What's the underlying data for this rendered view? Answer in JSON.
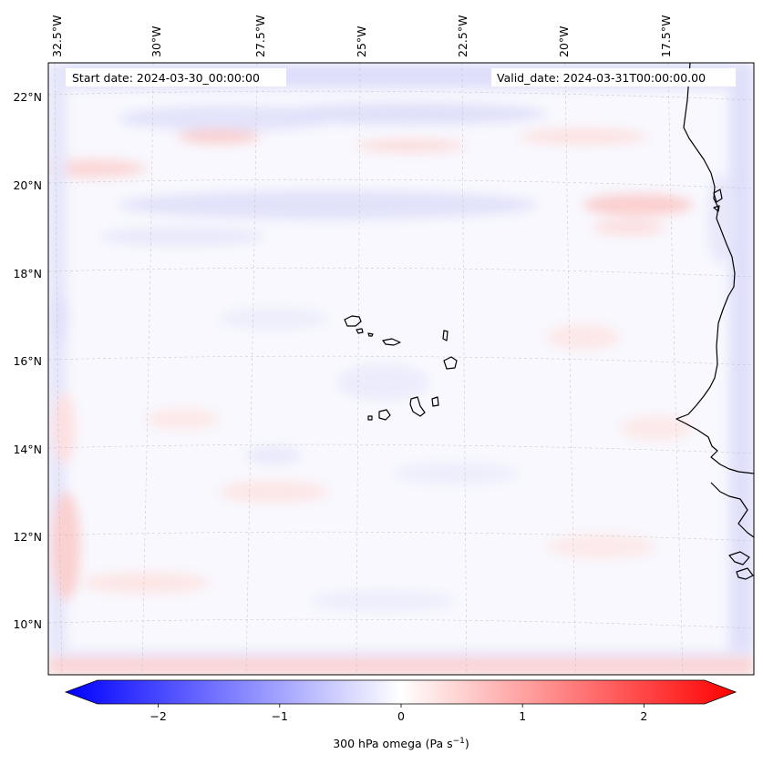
{
  "map": {
    "start_label": "Start date: 2024-03-30_00:00:00",
    "valid_label": "Valid_date: 2024-03-31T00:00:00.00",
    "lon_labels": [
      "32.5°W",
      "30°W",
      "27.5°W",
      "25°W",
      "22.5°W",
      "20°W",
      "17.5°W"
    ],
    "lat_labels": [
      "22°N",
      "20°N",
      "18°N",
      "16°N",
      "14°N",
      "12°N",
      "10°N"
    ],
    "variable": "300 hPa omega"
  },
  "colorbar": {
    "label_prefix": "300 hPa omega (Pa s",
    "label_exp": "−1",
    "label_suffix": ")",
    "ticks": [
      "−2",
      "−1",
      "0",
      "1",
      "2"
    ],
    "tick_values": [
      -2,
      -1,
      0,
      1,
      2
    ],
    "range": [
      -2.5,
      2.5
    ],
    "low_color": "#0000ff",
    "mid_color": "#ffffff",
    "high_color": "#ff0000"
  }
}
